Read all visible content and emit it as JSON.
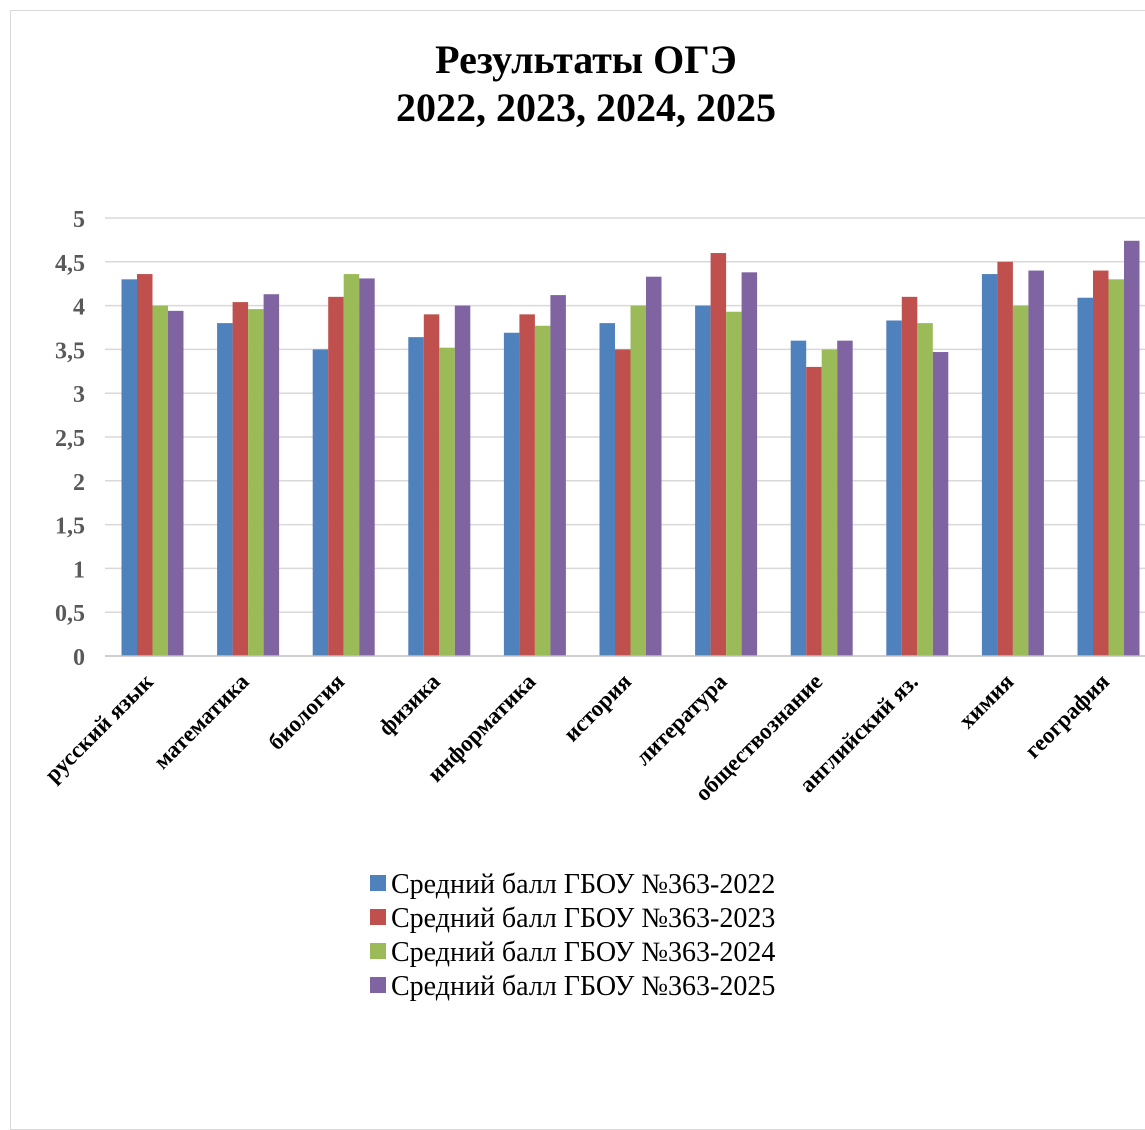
{
  "chart_data": {
    "type": "bar",
    "title_line1": "Результаты ОГЭ",
    "title_line2": "2022, 2023, 2024, 2025",
    "xlabel": "",
    "ylabel": "",
    "ylim": [
      0,
      5
    ],
    "yticks": [
      "0",
      "0,5",
      "1",
      "1,5",
      "2",
      "2,5",
      "3",
      "3,5",
      "4",
      "4,5",
      "5"
    ],
    "ytick_values": [
      0,
      0.5,
      1,
      1.5,
      2,
      2.5,
      3,
      3.5,
      4,
      4.5,
      5
    ],
    "grid": true,
    "legend_position": "bottom",
    "categories": [
      "русский язык",
      "математика",
      "биология",
      "физика",
      "информатика",
      "история",
      "литература",
      "обществознание",
      "английский яз.",
      "химия",
      "география"
    ],
    "series": [
      {
        "name": "Средний балл ГБОУ №363-2022",
        "color": "#4f81bd",
        "values": [
          4.3,
          3.8,
          3.5,
          3.64,
          3.69,
          3.8,
          4.0,
          3.6,
          3.83,
          4.36,
          4.09
        ]
      },
      {
        "name": "Средний балл ГБОУ №363-2023",
        "color": "#c0504d",
        "values": [
          4.36,
          4.04,
          4.1,
          3.9,
          3.9,
          3.5,
          4.6,
          3.3,
          4.1,
          4.5,
          4.4
        ]
      },
      {
        "name": "Средний балл ГБОУ №363-2024",
        "color": "#9bbb59",
        "values": [
          4.0,
          3.96,
          4.36,
          3.52,
          3.77,
          4.0,
          3.93,
          3.5,
          3.8,
          4.0,
          4.3
        ]
      },
      {
        "name": "Средний балл ГБОУ №363-2025",
        "color": "#8064a2",
        "values": [
          3.94,
          4.13,
          4.31,
          4.0,
          4.12,
          4.33,
          4.38,
          3.6,
          3.47,
          4.4,
          4.74
        ]
      }
    ]
  }
}
